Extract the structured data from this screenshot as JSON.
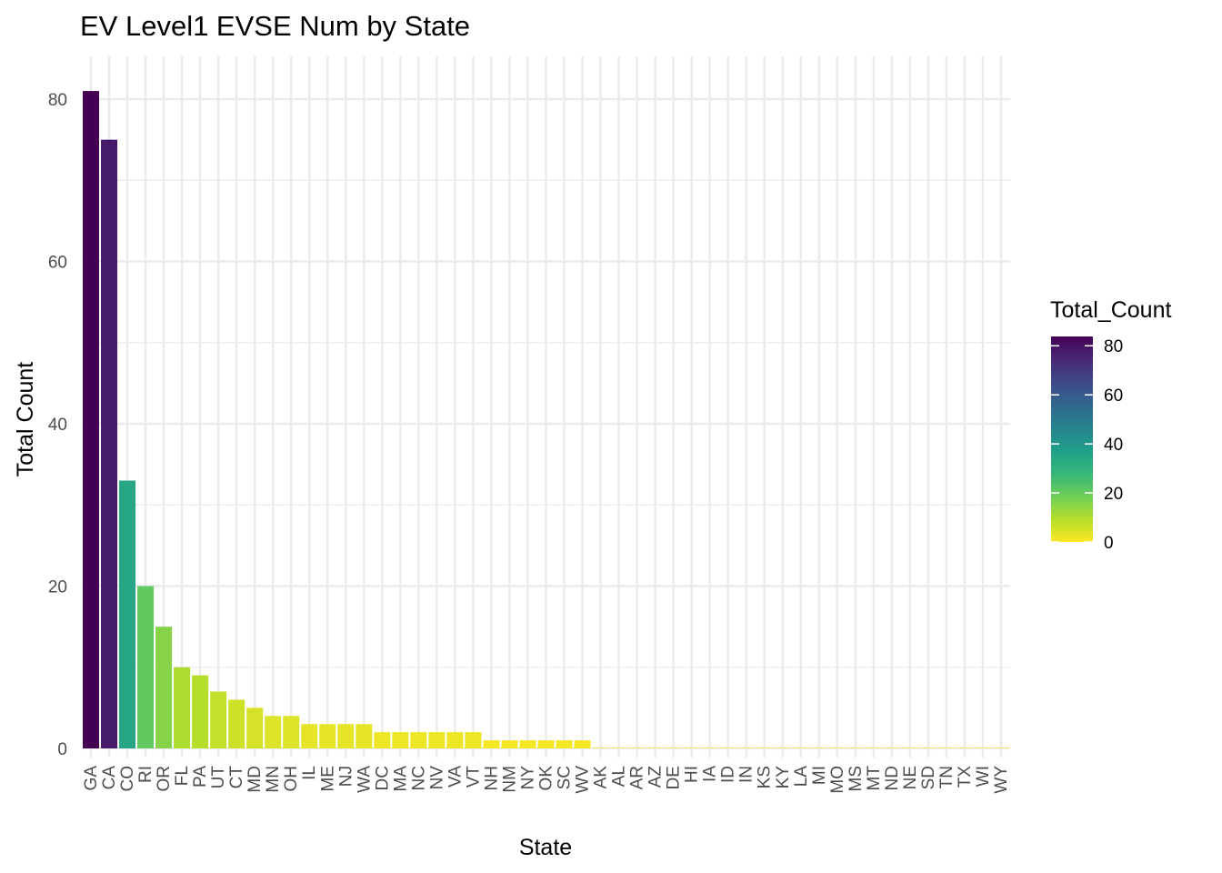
{
  "chart_data": {
    "type": "bar",
    "title": "EV Level1 EVSE Num by State",
    "xlabel": "State",
    "ylabel": "Total Count",
    "categories": [
      "GA",
      "CA",
      "CO",
      "RI",
      "OR",
      "FL",
      "PA",
      "UT",
      "CT",
      "MD",
      "MN",
      "OH",
      "IL",
      "ME",
      "NJ",
      "WA",
      "DC",
      "MA",
      "NC",
      "NV",
      "VA",
      "VT",
      "NH",
      "NM",
      "NY",
      "OK",
      "SC",
      "WV",
      "AK",
      "AL",
      "AR",
      "AZ",
      "DE",
      "HI",
      "IA",
      "ID",
      "IN",
      "KS",
      "KY",
      "LA",
      "MI",
      "MO",
      "MS",
      "MT",
      "ND",
      "NE",
      "SD",
      "TN",
      "TX",
      "WI",
      "WY"
    ],
    "values": [
      81,
      75,
      33,
      20,
      15,
      10,
      9,
      7,
      6,
      5,
      4,
      4,
      3,
      3,
      3,
      3,
      2,
      2,
      2,
      2,
      2,
      2,
      1,
      1,
      1,
      1,
      1,
      1,
      0,
      0,
      0,
      0,
      0,
      0,
      0,
      0,
      0,
      0,
      0,
      0,
      0,
      0,
      0,
      0,
      0,
      0,
      0,
      0,
      0,
      0,
      0
    ],
    "yticks": [
      0,
      20,
      40,
      60,
      80
    ],
    "ylim": [
      0,
      85
    ],
    "grid": true,
    "legend": {
      "title": "Total_Count",
      "ticks": [
        0,
        20,
        40,
        60,
        80
      ],
      "placement": "right",
      "colors": [
        "#fde725",
        "#b5de2b",
        "#6ece58",
        "#35b779",
        "#1f9e89",
        "#26828e",
        "#31688e",
        "#3e4989",
        "#482878",
        "#440154"
      ]
    }
  }
}
